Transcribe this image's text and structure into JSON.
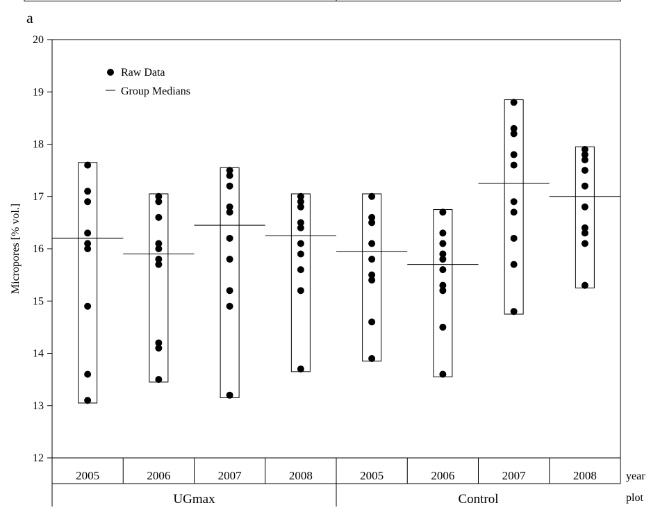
{
  "panel_label": "a",
  "chart_data": {
    "type": "scatter",
    "ylabel": "Micropores [% vol.]",
    "ylim": [
      12,
      20
    ],
    "yticks": [
      12,
      13,
      14,
      15,
      16,
      17,
      18,
      19,
      20
    ],
    "legend": {
      "placement": "top-left",
      "entries": [
        {
          "label": "Raw Data",
          "marker": "dot"
        },
        {
          "label": "Group Medians",
          "marker": "line"
        }
      ]
    },
    "x_row_labels": {
      "year": "year",
      "plot": "plot"
    },
    "plots": [
      "UGmax",
      "Control"
    ],
    "groups": [
      {
        "plot": "UGmax",
        "year": "2005",
        "box_min": 13.05,
        "box_max": 17.65,
        "median": 16.2,
        "points": [
          17.6,
          17.1,
          16.9,
          16.3,
          16.1,
          16.0,
          14.9,
          13.6,
          13.1
        ]
      },
      {
        "plot": "UGmax",
        "year": "2006",
        "box_min": 13.45,
        "box_max": 17.05,
        "median": 15.9,
        "points": [
          17.0,
          16.9,
          16.6,
          16.1,
          16.0,
          15.8,
          15.7,
          14.2,
          14.1,
          13.5
        ]
      },
      {
        "plot": "UGmax",
        "year": "2007",
        "box_min": 13.15,
        "box_max": 17.55,
        "median": 16.45,
        "points": [
          17.5,
          17.4,
          17.2,
          16.8,
          16.7,
          16.2,
          15.8,
          15.2,
          14.9,
          13.2
        ]
      },
      {
        "plot": "UGmax",
        "year": "2008",
        "box_min": 13.65,
        "box_max": 17.05,
        "median": 16.25,
        "points": [
          17.0,
          16.9,
          16.8,
          16.5,
          16.4,
          16.1,
          15.9,
          15.6,
          15.2,
          13.7
        ]
      },
      {
        "plot": "Control",
        "year": "2005",
        "box_min": 13.85,
        "box_max": 17.05,
        "median": 15.95,
        "points": [
          17.0,
          16.6,
          16.5,
          16.1,
          15.8,
          15.5,
          15.4,
          14.6,
          13.9
        ]
      },
      {
        "plot": "Control",
        "year": "2006",
        "box_min": 13.55,
        "box_max": 16.75,
        "median": 15.7,
        "points": [
          16.7,
          16.3,
          16.1,
          15.9,
          15.8,
          15.6,
          15.3,
          15.2,
          14.5,
          13.6
        ]
      },
      {
        "plot": "Control",
        "year": "2007",
        "box_min": 14.75,
        "box_max": 18.85,
        "median": 17.25,
        "points": [
          18.8,
          18.3,
          18.2,
          17.8,
          17.6,
          16.9,
          16.7,
          16.2,
          15.7,
          14.8
        ]
      },
      {
        "plot": "Control",
        "year": "2008",
        "box_min": 15.25,
        "box_max": 17.95,
        "median": 17.0,
        "points": [
          17.9,
          17.8,
          17.7,
          17.5,
          17.2,
          16.8,
          16.4,
          16.3,
          16.1,
          15.3
        ]
      }
    ]
  }
}
